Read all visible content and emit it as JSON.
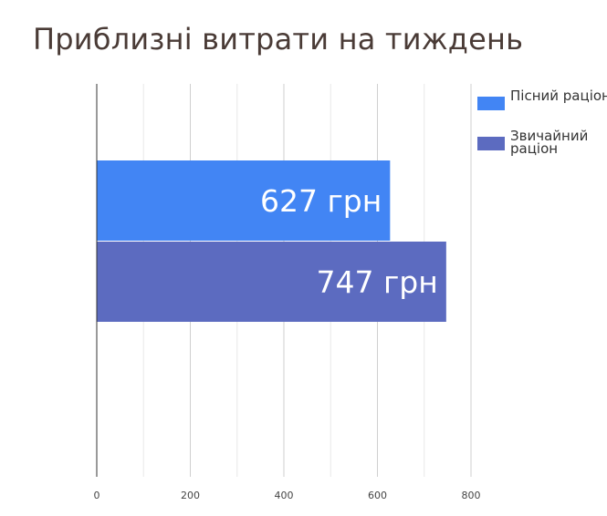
{
  "chart_data": {
    "type": "bar",
    "orientation": "horizontal",
    "title": "Приблизні витрати на тиждень",
    "xlabel": "",
    "ylabel": "",
    "xlim": [
      0,
      800
    ],
    "xticks": [
      0,
      200,
      400,
      600,
      800
    ],
    "grid": true,
    "legend_position": "top-right",
    "series": [
      {
        "name": "Пісний раціон",
        "value": 627,
        "label": "627 грн",
        "color": "#4285f4"
      },
      {
        "name": "Звичайний раціон",
        "value": 747,
        "label": "747 грн",
        "color": "#5c6bc0"
      }
    ]
  }
}
